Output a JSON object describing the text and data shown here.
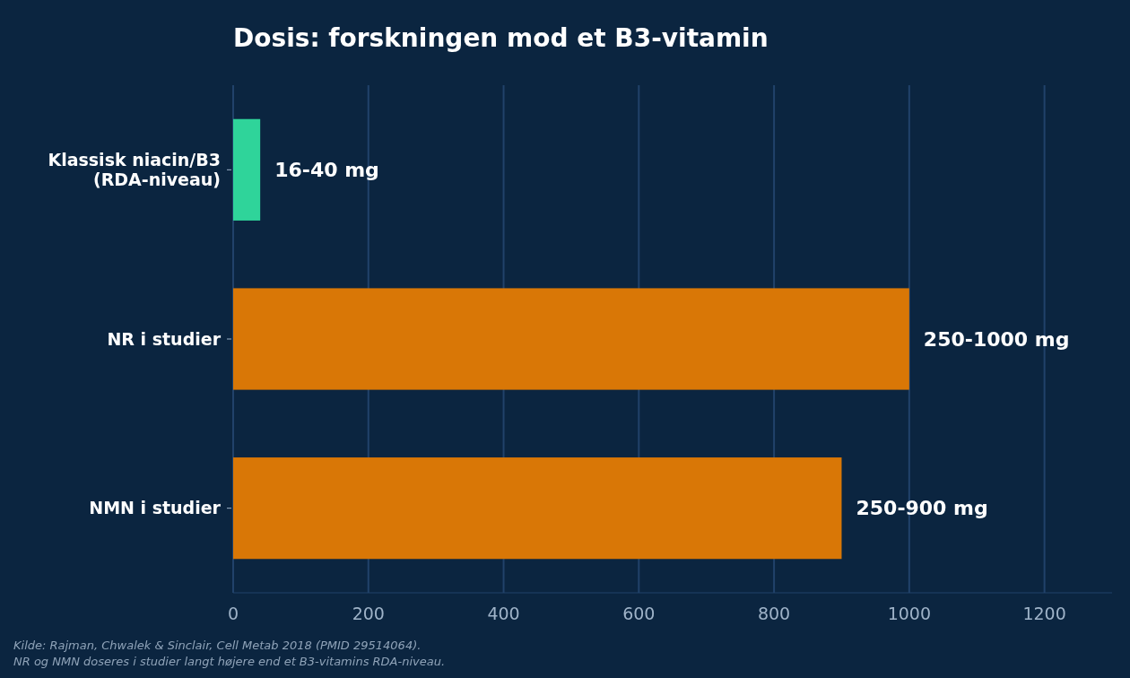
{
  "chart_data": {
    "type": "bar",
    "orientation": "horizontal",
    "title": "Dosis: forskningen mod et B3-vitamin",
    "categories": [
      "Klassisk niacin/B3\n(RDA-niveau)",
      "NR i studier",
      "NMN i studier"
    ],
    "values": [
      40,
      1000,
      900
    ],
    "colors": [
      "#2fd49a",
      "#d97706",
      "#d97706"
    ],
    "value_labels": [
      "16-40 mg",
      "250-1000 mg",
      "250-900 mg"
    ],
    "xlim": [
      0,
      1300
    ],
    "xticks": [
      0,
      200,
      400,
      600,
      800,
      1000,
      1200
    ],
    "grid": "x",
    "annotations": [
      "Kilde: Rajman, Chwalek & Sinclair, Cell Metab 2018 (PMID 29514064).",
      "NR og NMN doseres i studier langt højere end et B3-vitamins RDA-niveau."
    ]
  }
}
